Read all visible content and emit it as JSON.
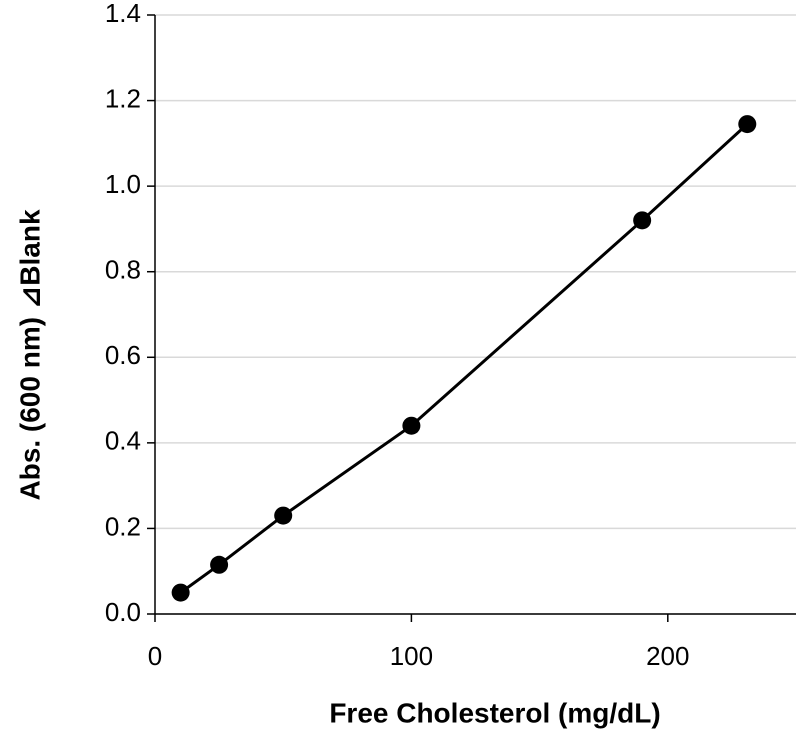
{
  "chart_data": {
    "type": "scatter",
    "x_label": "Free Cholesterol (mg/dL)",
    "y_label": "Abs. (600 nm) ⊿Blank",
    "x": [
      10,
      25,
      50,
      100,
      190,
      231
    ],
    "series": [
      {
        "color": "#000000",
        "values": [
          0.05,
          0.115,
          0.23,
          0.44,
          0.92,
          1.145
        ]
      }
    ],
    "xlim": [
      0,
      250
    ],
    "xticks": [
      0,
      100,
      200
    ],
    "ylim": [
      0,
      1.4
    ],
    "yticks": [
      {
        "value": 0,
        "label": "0.0"
      },
      {
        "value": 0.2,
        "label": "0.2"
      },
      {
        "value": 0.4,
        "label": "0.4"
      },
      {
        "value": 0.6,
        "label": "0.6"
      },
      {
        "value": 0.8,
        "label": "0.8"
      },
      {
        "value": 1.0,
        "label": "1.0"
      },
      {
        "value": 1.2,
        "label": "1.2"
      },
      {
        "value": 1.4,
        "label": "1.4"
      }
    ],
    "grid": true
  }
}
